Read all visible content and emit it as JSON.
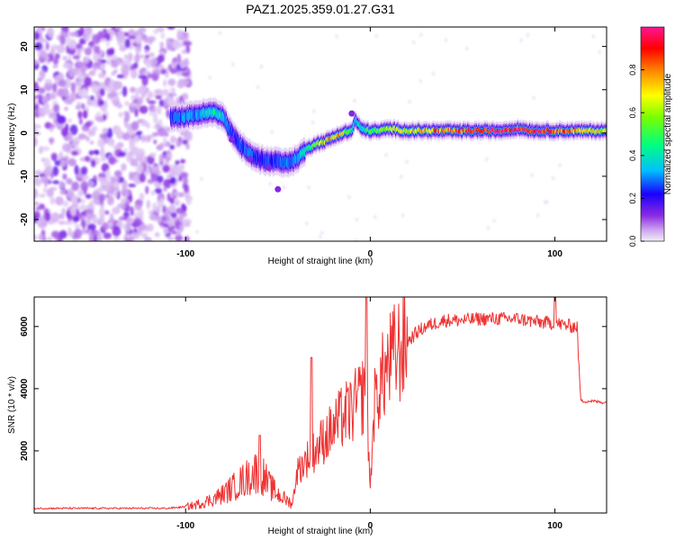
{
  "title": "PAZ1.2025.359.01.27.G31",
  "chart_data": [
    {
      "type": "heatmap",
      "name": "spectrogram",
      "xlabel": "Height of straight line (km)",
      "ylabel": "Frequency (Hz)",
      "xlim": [
        -182,
        128
      ],
      "ylim": [
        -25,
        24.5
      ],
      "xticks": [
        -100,
        0,
        100
      ],
      "yticks": [
        20,
        10,
        0,
        -10,
        -20
      ],
      "colorbar": {
        "label": "Normalized spectral amplitude",
        "range": [
          0.0,
          1.0
        ],
        "ticks": [
          "0.0",
          "0.2",
          "0.4",
          "0.6",
          "0.8"
        ]
      },
      "noise_region_x": [
        -182,
        -98
      ],
      "signal_ridge": {
        "x": [
          -108,
          -100,
          -95,
          -90,
          -85,
          -80,
          -75,
          -70,
          -65,
          -60,
          -55,
          -50,
          -45,
          -40,
          -35,
          -30,
          -25,
          -20,
          -15,
          -10,
          -8,
          -5,
          0,
          5,
          10,
          20,
          30,
          40,
          50,
          60,
          70,
          80,
          90,
          100,
          110,
          120,
          128
        ],
        "freq": [
          3.5,
          3.8,
          4.2,
          4.5,
          4.8,
          4.0,
          0.0,
          -3.0,
          -5.0,
          -6.0,
          -6.5,
          -6.5,
          -7.0,
          -6.0,
          -4.0,
          -2.5,
          -2.0,
          -1.0,
          0.0,
          0.5,
          3.0,
          1.0,
          0.5,
          0.5,
          1.0,
          0.5,
          0.5,
          0.5,
          0.5,
          0.5,
          0.5,
          1.0,
          0.5,
          0.5,
          0.5,
          0.5,
          0.5
        ],
        "amplitude": [
          0.25,
          0.3,
          0.3,
          0.35,
          0.45,
          0.35,
          0.25,
          0.25,
          0.3,
          0.2,
          0.25,
          0.25,
          0.3,
          0.3,
          0.4,
          0.55,
          0.7,
          0.75,
          0.7,
          0.4,
          0.35,
          0.4,
          0.5,
          0.55,
          0.6,
          0.65,
          0.75,
          0.8,
          0.85,
          0.9,
          0.95,
          0.9,
          0.95,
          0.85,
          0.75,
          0.7,
          0.65
        ]
      }
    },
    {
      "type": "line",
      "name": "snr",
      "xlabel": "Height of straight line (km)",
      "ylabel": "SNR (10 * v/v)",
      "xlim": [
        -182,
        128
      ],
      "ylim": [
        0,
        6950
      ],
      "xticks": [
        -100,
        0,
        100
      ],
      "yticks": [
        2000,
        4000,
        6000
      ],
      "color": "#ee3333",
      "series": [
        {
          "name": "SNR",
          "x": [
            -182,
            -170,
            -160,
            -150,
            -140,
            -130,
            -120,
            -110,
            -100,
            -95,
            -90,
            -85,
            -80,
            -75,
            -70,
            -65,
            -60,
            -55,
            -50,
            -45,
            -42,
            -40,
            -35,
            -30,
            -25,
            -20,
            -15,
            -10,
            -5,
            -2,
            0,
            2,
            5,
            10,
            15,
            20,
            25,
            30,
            35,
            40,
            50,
            60,
            70,
            80,
            90,
            100,
            105,
            110,
            112,
            114,
            120,
            128
          ],
          "values": [
            150,
            150,
            150,
            150,
            150,
            150,
            150,
            150,
            200,
            250,
            350,
            450,
            600,
            800,
            1000,
            1200,
            1400,
            900,
            600,
            400,
            300,
            1300,
            1700,
            2000,
            2400,
            2700,
            3100,
            3300,
            3700,
            4000,
            700,
            3400,
            4100,
            4800,
            5200,
            5500,
            5800,
            6000,
            6100,
            6200,
            6200,
            6250,
            6250,
            6250,
            6150,
            6100,
            6050,
            6000,
            6000,
            3600,
            3600,
            3550
          ]
        }
      ],
      "spikes": [
        {
          "x": -60,
          "value": 2500
        },
        {
          "x": -32,
          "value": 5000
        },
        {
          "x": -2,
          "value": 6950
        },
        {
          "x": 100,
          "value": 6950
        }
      ]
    }
  ]
}
